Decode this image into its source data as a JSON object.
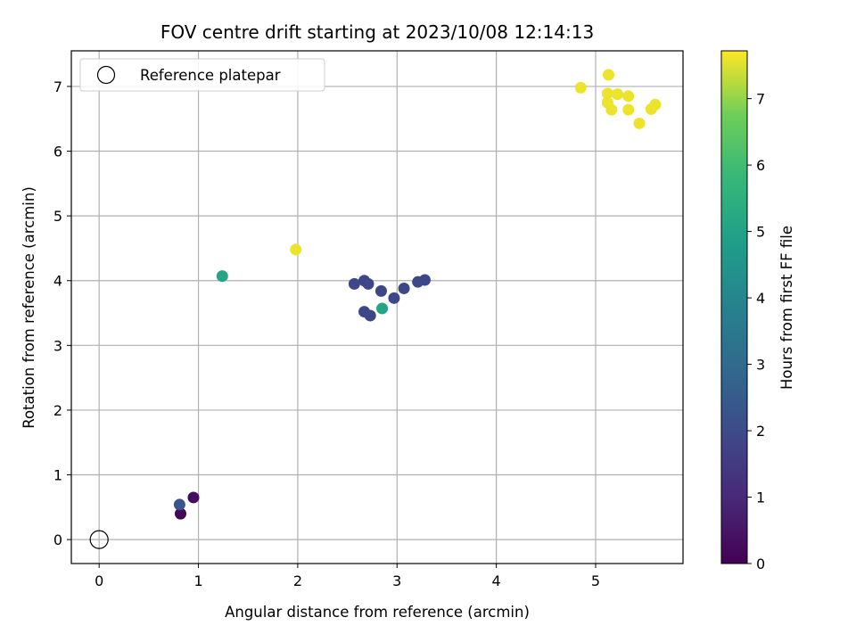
{
  "chart_data": {
    "type": "scatter",
    "title": "FOV centre drift starting at 2023/10/08 12:14:13",
    "xlabel": "Angular distance from reference (arcmin)",
    "ylabel": "Rotation from reference (arcmin)",
    "xlim": [
      -0.28,
      5.88
    ],
    "ylim": [
      -0.37,
      7.55
    ],
    "x_ticks": [
      0,
      1,
      2,
      3,
      4,
      5
    ],
    "y_ticks": [
      0,
      1,
      2,
      3,
      4,
      5,
      6,
      7
    ],
    "grid": true,
    "colorbar": {
      "label": "Hours from first FF file",
      "range": [
        0,
        7.72
      ],
      "ticks": [
        0,
        1,
        2,
        3,
        4,
        5,
        6,
        7
      ],
      "colormap": "viridis"
    },
    "legend": {
      "position": "top-left",
      "entries": [
        {
          "label": "Reference platepar",
          "marker": "open-circle"
        }
      ]
    },
    "reference": {
      "x": 0,
      "y": 0
    },
    "points": [
      {
        "x": 0.82,
        "y": 0.4,
        "hours": 0.05
      },
      {
        "x": 0.95,
        "y": 0.65,
        "hours": 0.3
      },
      {
        "x": 0.81,
        "y": 0.54,
        "hours": 2.3
      },
      {
        "x": 1.24,
        "y": 4.07,
        "hours": 5.1
      },
      {
        "x": 1.98,
        "y": 4.48,
        "hours": 7.6
      },
      {
        "x": 2.57,
        "y": 3.95,
        "hours": 1.9
      },
      {
        "x": 2.67,
        "y": 4.0,
        "hours": 1.9
      },
      {
        "x": 2.71,
        "y": 3.95,
        "hours": 1.9
      },
      {
        "x": 2.67,
        "y": 3.52,
        "hours": 1.9
      },
      {
        "x": 2.73,
        "y": 3.46,
        "hours": 1.9
      },
      {
        "x": 2.84,
        "y": 3.84,
        "hours": 1.9
      },
      {
        "x": 2.85,
        "y": 3.57,
        "hours": 5.1
      },
      {
        "x": 2.97,
        "y": 3.73,
        "hours": 1.9
      },
      {
        "x": 3.07,
        "y": 3.88,
        "hours": 1.9
      },
      {
        "x": 3.21,
        "y": 3.98,
        "hours": 1.9
      },
      {
        "x": 3.28,
        "y": 4.01,
        "hours": 1.9
      },
      {
        "x": 4.85,
        "y": 6.98,
        "hours": 7.6
      },
      {
        "x": 5.13,
        "y": 7.18,
        "hours": 7.6
      },
      {
        "x": 5.12,
        "y": 6.89,
        "hours": 7.6
      },
      {
        "x": 5.12,
        "y": 6.75,
        "hours": 7.6
      },
      {
        "x": 5.16,
        "y": 6.64,
        "hours": 7.6
      },
      {
        "x": 5.22,
        "y": 6.88,
        "hours": 7.6
      },
      {
        "x": 5.33,
        "y": 6.85,
        "hours": 7.6
      },
      {
        "x": 5.33,
        "y": 6.64,
        "hours": 7.6
      },
      {
        "x": 5.44,
        "y": 6.43,
        "hours": 7.6
      },
      {
        "x": 5.56,
        "y": 6.65,
        "hours": 7.6
      },
      {
        "x": 5.6,
        "y": 6.72,
        "hours": 7.6
      }
    ]
  }
}
